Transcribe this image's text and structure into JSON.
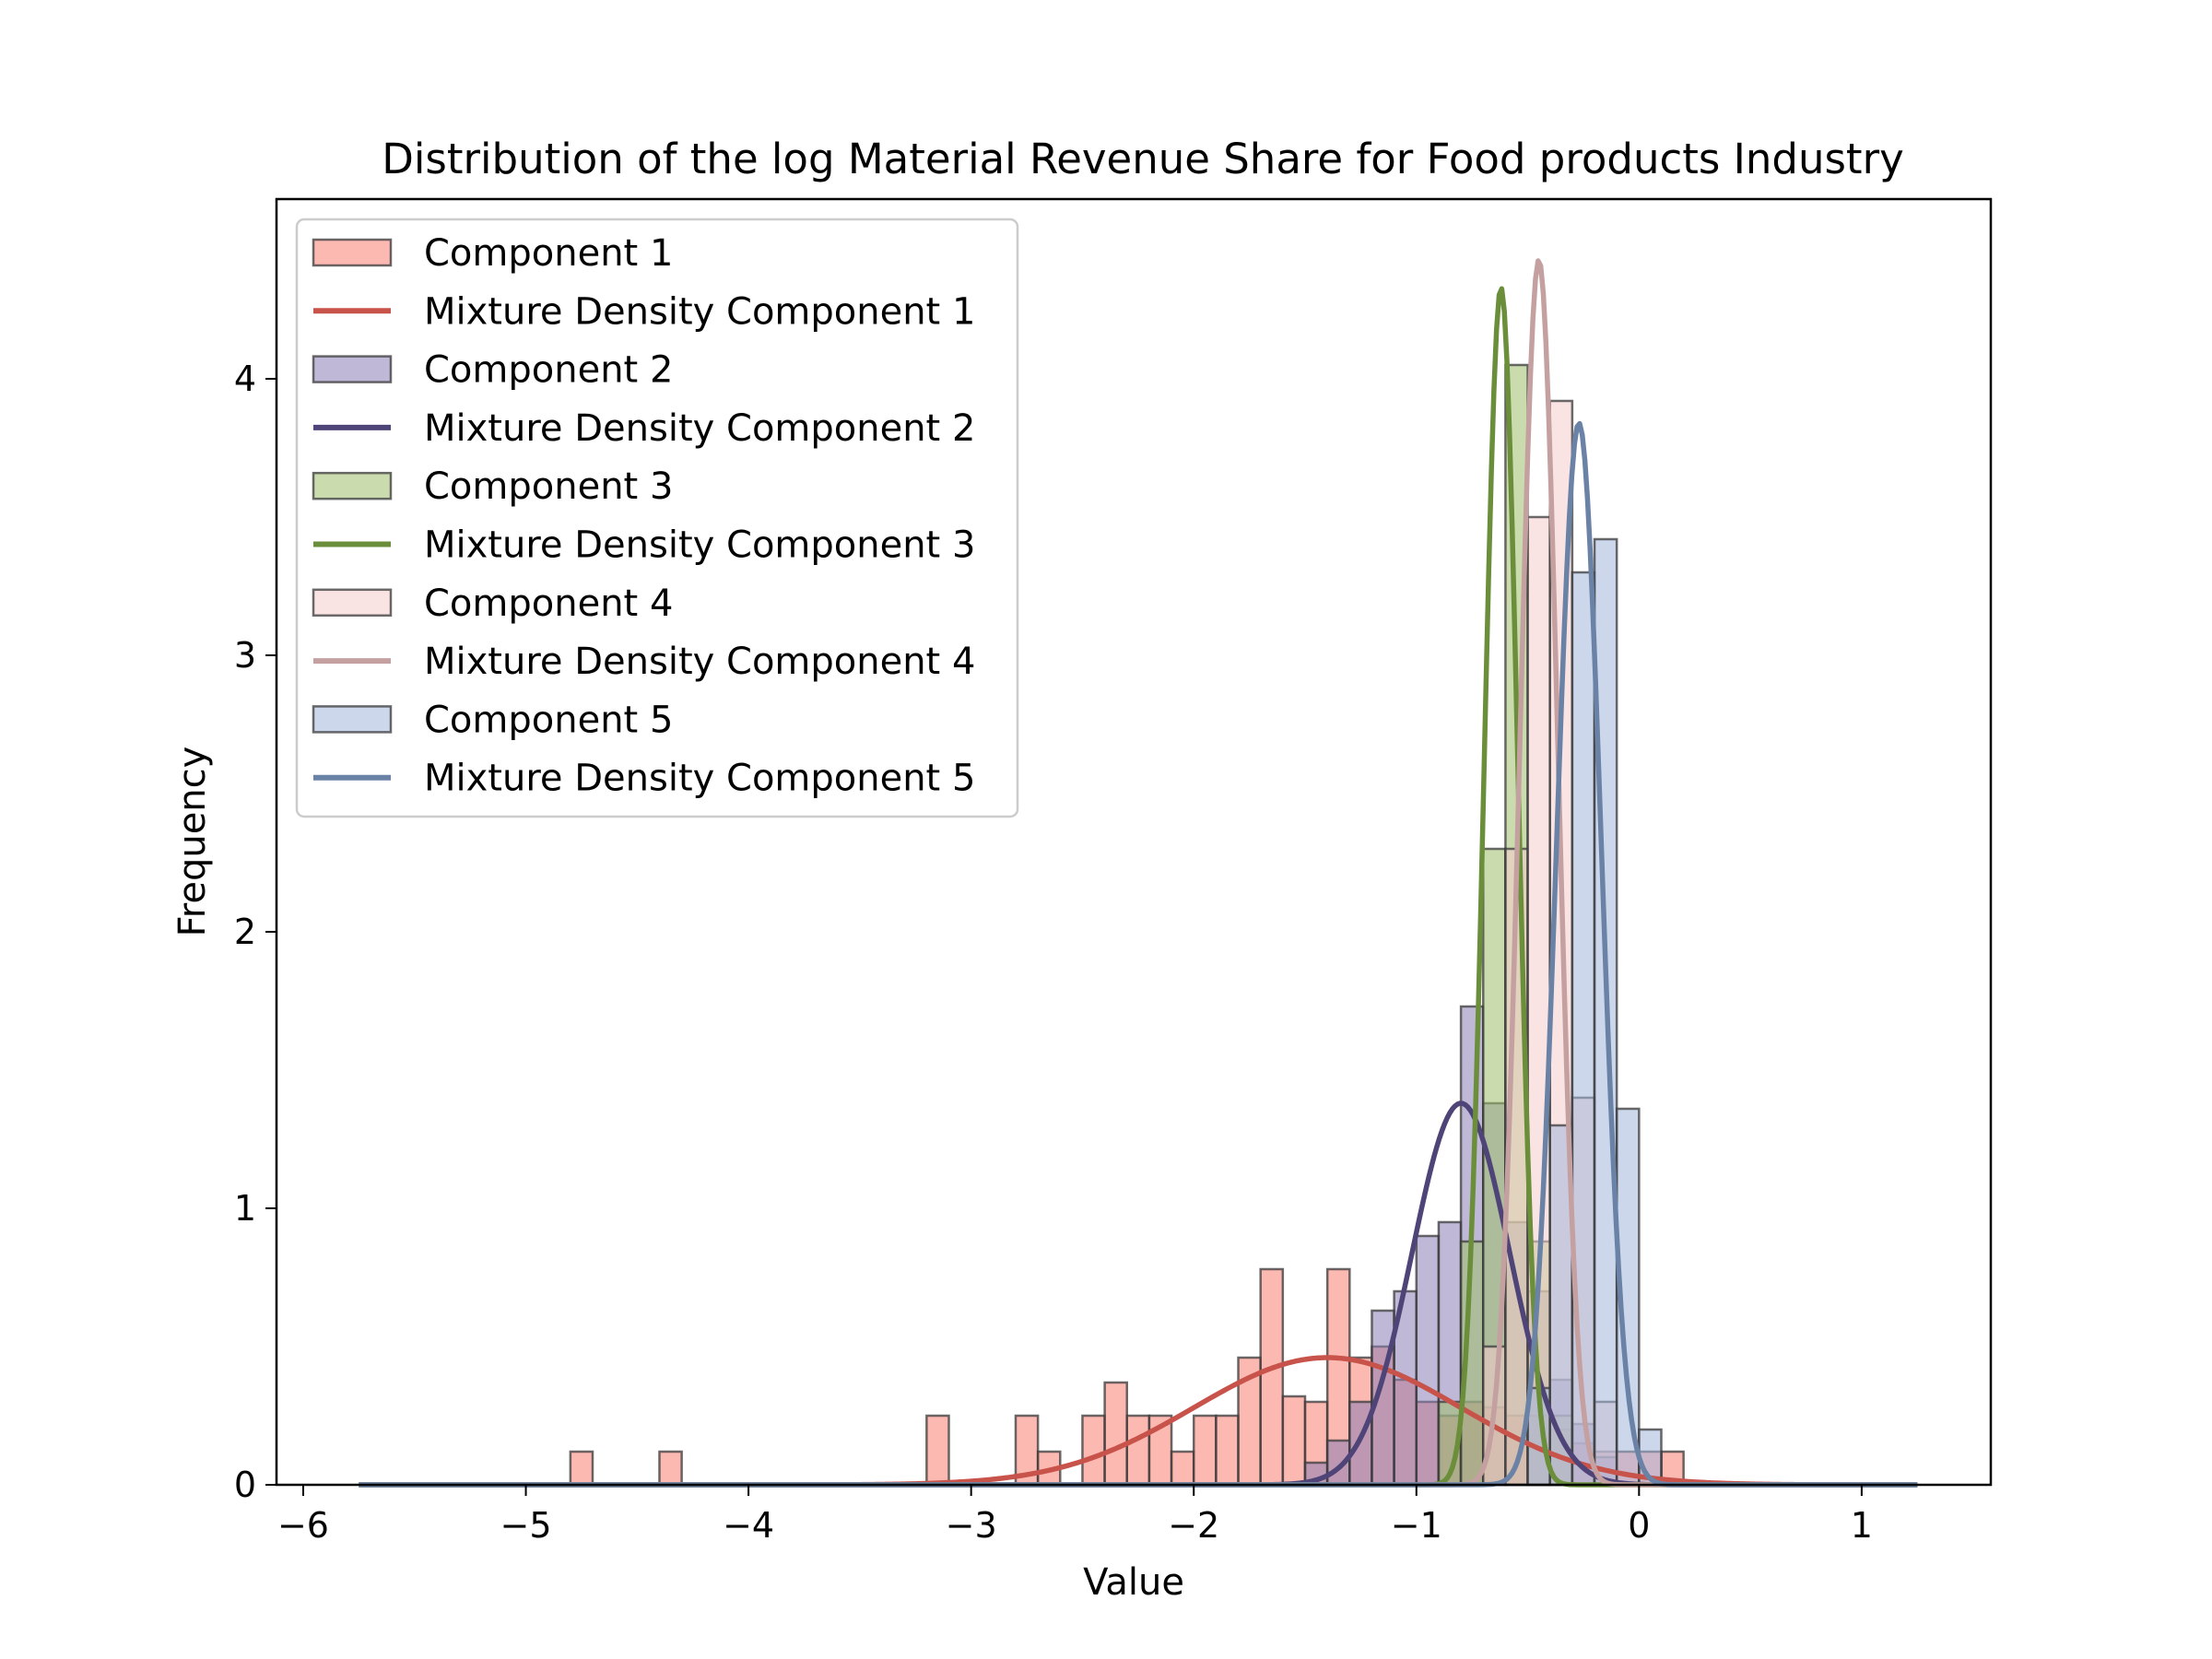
{
  "chart_data": {
    "type": "bar",
    "title": "Distribution of the log Material Revenue Share for Food products Industry",
    "xlabel": "Value",
    "ylabel": "Frequency",
    "xlim": [
      -6.12,
      1.58
    ],
    "ylim": [
      0,
      4.65
    ],
    "x_ticks": [
      -6,
      -5,
      -4,
      -3,
      -2,
      -1,
      0,
      1
    ],
    "x_tick_labels": [
      "−6",
      "−5",
      "−4",
      "−3",
      "−2",
      "−1",
      "0",
      "1"
    ],
    "y_ticks": [
      0,
      1,
      2,
      3,
      4
    ],
    "y_tick_labels": [
      "0",
      "1",
      "2",
      "3",
      "4"
    ],
    "grid": false,
    "legend_placement": "upper-left",
    "bin_width": 0.1,
    "series": [
      {
        "name": "Component 1",
        "kind": "histogram",
        "color": "#fa8072",
        "bins": [
          {
            "x": -4.75,
            "y": 0.12
          },
          {
            "x": -4.35,
            "y": 0.12
          },
          {
            "x": -3.15,
            "y": 0.25
          },
          {
            "x": -2.75,
            "y": 0.25
          },
          {
            "x": -2.65,
            "y": 0.12
          },
          {
            "x": -2.45,
            "y": 0.25
          },
          {
            "x": -2.35,
            "y": 0.37
          },
          {
            "x": -2.25,
            "y": 0.25
          },
          {
            "x": -2.15,
            "y": 0.25
          },
          {
            "x": -2.05,
            "y": 0.12
          },
          {
            "x": -1.95,
            "y": 0.25
          },
          {
            "x": -1.85,
            "y": 0.25
          },
          {
            "x": -1.75,
            "y": 0.46
          },
          {
            "x": -1.65,
            "y": 0.78
          },
          {
            "x": -1.55,
            "y": 0.32
          },
          {
            "x": -1.45,
            "y": 0.3
          },
          {
            "x": -1.35,
            "y": 0.78
          },
          {
            "x": -1.25,
            "y": 0.46
          },
          {
            "x": -1.15,
            "y": 0.5
          },
          {
            "x": -1.05,
            "y": 0.38
          },
          {
            "x": -0.95,
            "y": 0.3
          },
          {
            "x": -0.85,
            "y": 0.25
          },
          {
            "x": -0.75,
            "y": 0.3
          },
          {
            "x": -0.65,
            "y": 0.28
          },
          {
            "x": -0.55,
            "y": 0.25
          },
          {
            "x": -0.45,
            "y": 0.25
          },
          {
            "x": -0.35,
            "y": 0.2
          },
          {
            "x": -0.25,
            "y": 0.15
          },
          {
            "x": -0.15,
            "y": 0.12
          },
          {
            "x": -0.05,
            "y": 0.12
          },
          {
            "x": 0.05,
            "y": 0.12
          },
          {
            "x": 0.15,
            "y": 0.12
          }
        ]
      },
      {
        "name": "Mixture Density Component 1",
        "kind": "curve",
        "color": "#c8534a",
        "mean": -1.4,
        "sd": 0.6,
        "peak": 0.46,
        "range": [
          -5.75,
          1.25
        ]
      },
      {
        "name": "Component 2",
        "kind": "histogram",
        "color": "#8b7db4",
        "bins": [
          {
            "x": -1.45,
            "y": 0.08
          },
          {
            "x": -1.35,
            "y": 0.16
          },
          {
            "x": -1.25,
            "y": 0.3
          },
          {
            "x": -1.15,
            "y": 0.63
          },
          {
            "x": -1.05,
            "y": 0.7
          },
          {
            "x": -0.95,
            "y": 0.9
          },
          {
            "x": -0.85,
            "y": 0.95
          },
          {
            "x": -0.75,
            "y": 1.73
          },
          {
            "x": -0.65,
            "y": 1.38
          },
          {
            "x": -0.55,
            "y": 0.95
          },
          {
            "x": -0.45,
            "y": 0.7
          },
          {
            "x": -0.35,
            "y": 0.38
          },
          {
            "x": -0.25,
            "y": 0.22
          },
          {
            "x": -0.15,
            "y": 0.1
          }
        ]
      },
      {
        "name": "Mixture Density Component 2",
        "kind": "curve",
        "color": "#4f4477",
        "mean": -0.8,
        "sd": 0.22,
        "peak": 1.38,
        "range": [
          -5.75,
          1.25
        ]
      },
      {
        "name": "Component 3",
        "kind": "histogram",
        "color": "#9fc06b",
        "bins": [
          {
            "x": -0.85,
            "y": 0.3
          },
          {
            "x": -0.75,
            "y": 0.88
          },
          {
            "x": -0.65,
            "y": 2.3
          },
          {
            "x": -0.55,
            "y": 4.05
          },
          {
            "x": -0.45,
            "y": 0.88
          },
          {
            "x": -0.35,
            "y": 0.25
          }
        ]
      },
      {
        "name": "Mixture Density Component 3",
        "kind": "curve",
        "color": "#6b8e3a",
        "mean": -0.62,
        "sd": 0.075,
        "peak": 4.33,
        "range": [
          -5.75,
          1.25
        ]
      },
      {
        "name": "Component 4",
        "kind": "histogram",
        "color": "#f5cccc",
        "bins": [
          {
            "x": -0.65,
            "y": 0.5
          },
          {
            "x": -0.55,
            "y": 2.3
          },
          {
            "x": -0.45,
            "y": 3.5
          },
          {
            "x": -0.35,
            "y": 3.92
          },
          {
            "x": -0.25,
            "y": 1.4
          },
          {
            "x": -0.15,
            "y": 0.3
          }
        ]
      },
      {
        "name": "Mixture Density Component 4",
        "kind": "curve",
        "color": "#c4a0a0",
        "mean": -0.45,
        "sd": 0.085,
        "peak": 4.43,
        "range": [
          -5.75,
          1.25
        ]
      },
      {
        "name": "Component 5",
        "kind": "histogram",
        "color": "#a3b6dc",
        "bins": [
          {
            "x": -0.45,
            "y": 0.35
          },
          {
            "x": -0.35,
            "y": 1.3
          },
          {
            "x": -0.25,
            "y": 3.3
          },
          {
            "x": -0.15,
            "y": 3.42
          },
          {
            "x": -0.05,
            "y": 1.36
          },
          {
            "x": 0.05,
            "y": 0.2
          }
        ]
      },
      {
        "name": "Mixture Density Component 5",
        "kind": "curve",
        "color": "#6a82a6",
        "mean": -0.27,
        "sd": 0.1,
        "peak": 3.84,
        "range": [
          -5.75,
          1.25
        ]
      }
    ]
  }
}
